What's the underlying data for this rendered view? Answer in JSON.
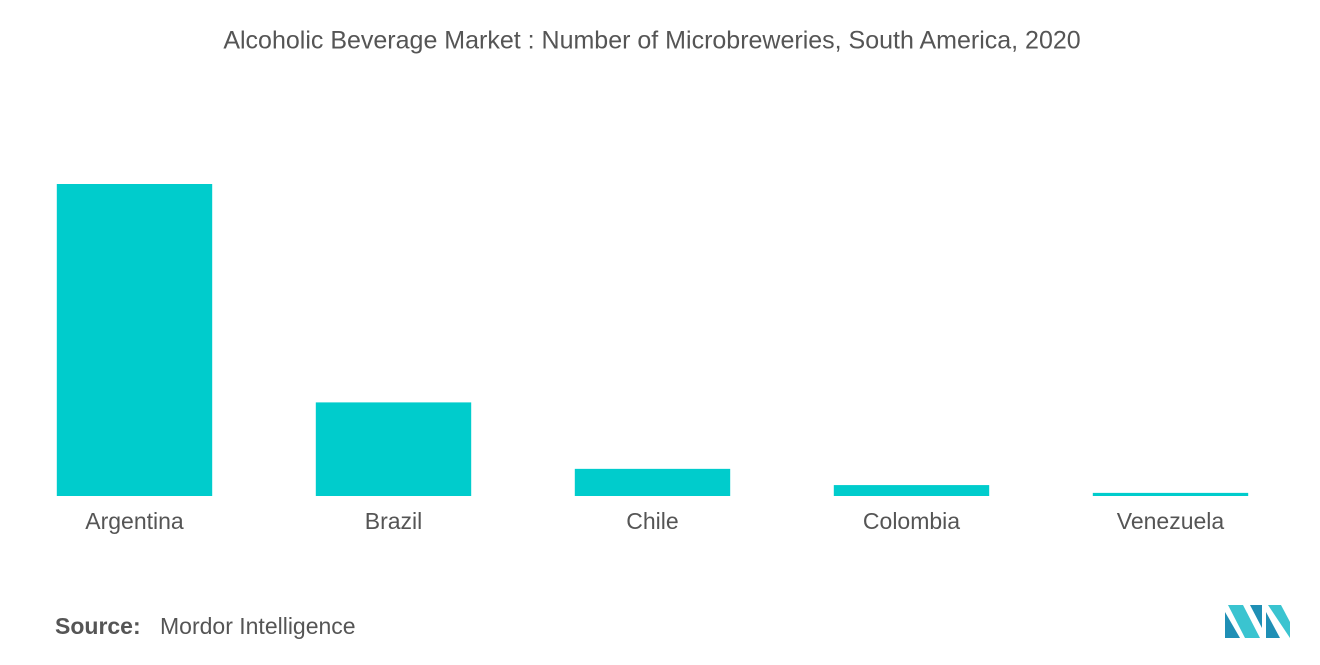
{
  "chart_data": {
    "type": "bar",
    "title": "Alcoholic Beverage Market : Number of Microbreweries, South America, 2020",
    "categories": [
      "Argentina",
      "Brazil",
      "Chile",
      "Colombia",
      "Venezuela"
    ],
    "values": [
      100,
      30,
      8.7,
      3.5,
      1
    ],
    "color": "#00cccc",
    "ylim": [
      0,
      100
    ],
    "source_label": "Source:",
    "source": "Mordor Intelligence"
  }
}
